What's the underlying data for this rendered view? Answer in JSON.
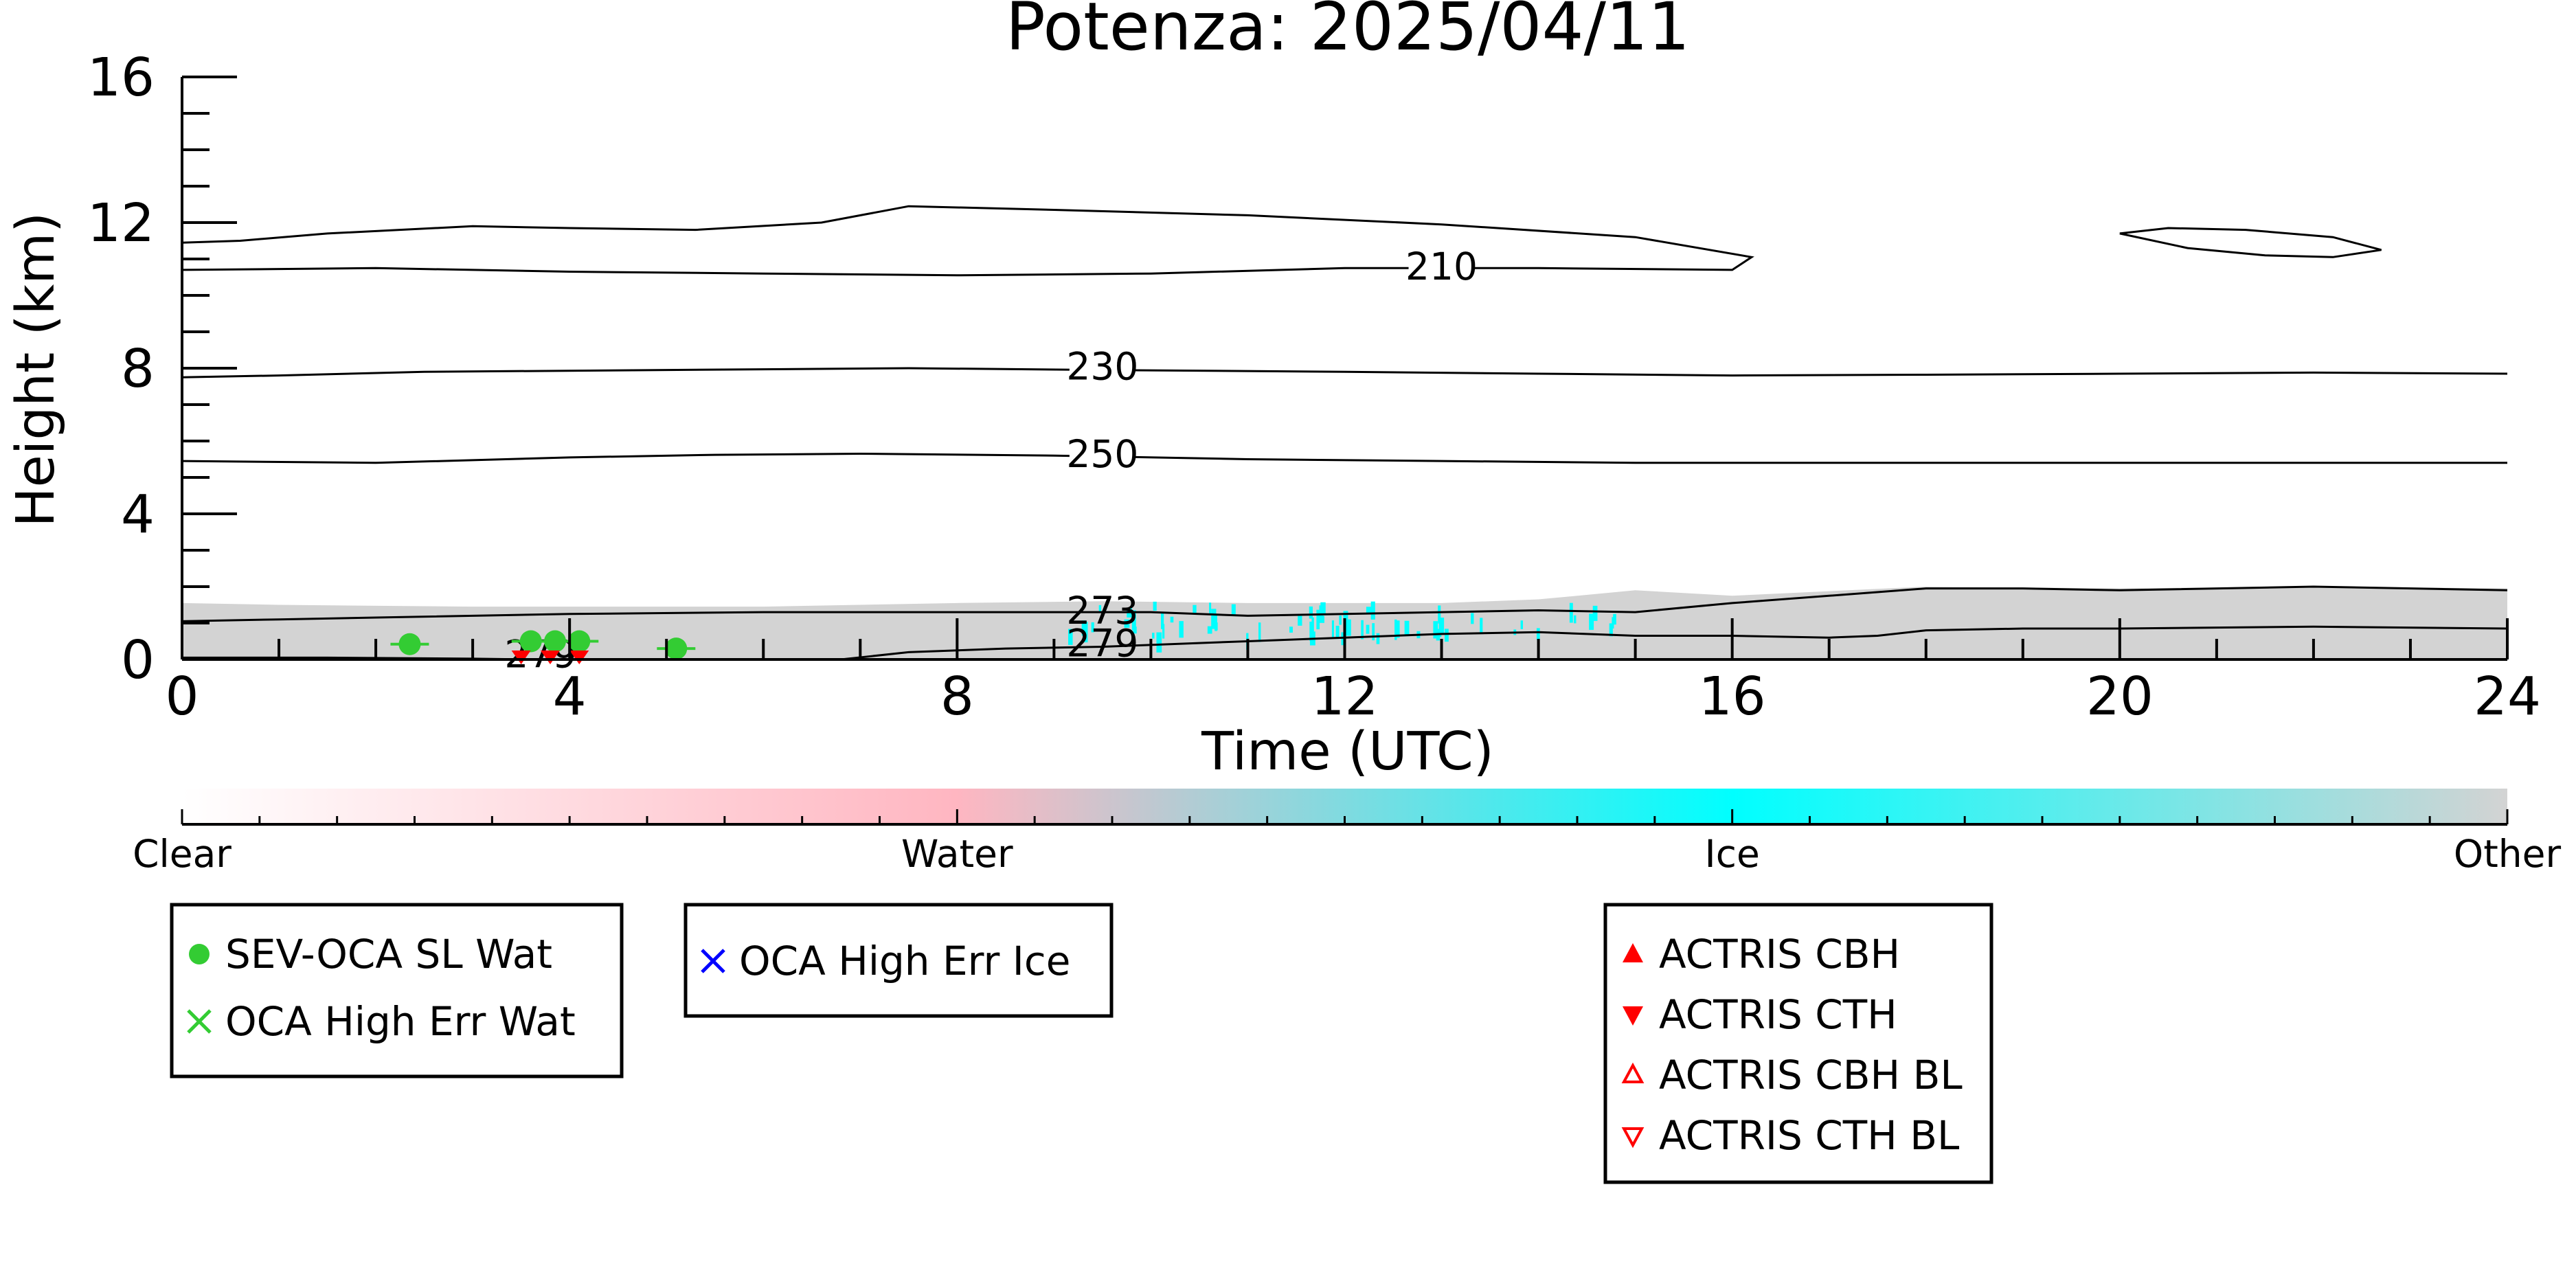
{
  "chart_data": {
    "type": "heatmap",
    "title": "Potenza: 2025/04/11",
    "xlabel": "Time (UTC)",
    "ylabel": "Height (km)",
    "xlim": [
      0,
      24
    ],
    "ylim": [
      0,
      16
    ],
    "xticks": [
      0,
      4,
      8,
      12,
      16,
      20,
      24
    ],
    "yticks": [
      0,
      4,
      8,
      12,
      16
    ],
    "grid": false,
    "categories": [
      "Clear",
      "Water",
      "Ice",
      "Other"
    ],
    "category_colors": {
      "Clear": "#ffffff",
      "Water": "#ffb6c1",
      "Ice": "#00ffff",
      "Other": "#d3d3d3"
    },
    "contours": [
      {
        "label": "210",
        "label_pos": [
          13,
          10.7
        ],
        "segments": [
          [
            [
              0,
              11.45
            ],
            [
              0.6,
              11.5
            ],
            [
              1.5,
              11.7
            ],
            [
              3,
              11.9
            ],
            [
              4,
              11.85
            ],
            [
              5.3,
              11.8
            ],
            [
              6.6,
              12.0
            ],
            [
              7.5,
              12.45
            ],
            [
              9,
              12.35
            ],
            [
              11,
              12.2
            ],
            [
              13,
              11.95
            ],
            [
              15,
              11.6
            ],
            [
              16.2,
              11.05
            ],
            [
              16,
              10.7
            ],
            [
              14,
              10.75
            ],
            [
              13,
              10.75
            ],
            [
              12,
              10.75
            ],
            [
              10,
              10.6
            ],
            [
              8,
              10.55
            ],
            [
              6,
              10.6
            ],
            [
              4,
              10.65
            ],
            [
              2,
              10.75
            ],
            [
              0,
              10.7
            ]
          ],
          [
            [
              20,
              11.7
            ],
            [
              20.5,
              11.85
            ],
            [
              21.3,
              11.8
            ],
            [
              22.2,
              11.6
            ],
            [
              22.7,
              11.25
            ],
            [
              22.2,
              11.05
            ],
            [
              21.5,
              11.1
            ],
            [
              20.7,
              11.3
            ],
            [
              20,
              11.7
            ]
          ]
        ]
      },
      {
        "label": "230",
        "label_pos": [
          9.5,
          7.95
        ],
        "segments": [
          [
            [
              0,
              7.75
            ],
            [
              1,
              7.8
            ],
            [
              2.5,
              7.9
            ],
            [
              5,
              7.95
            ],
            [
              7.5,
              8.0
            ],
            [
              9.5,
              7.95
            ],
            [
              12,
              7.9
            ],
            [
              14,
              7.85
            ],
            [
              16,
              7.8
            ],
            [
              18,
              7.82
            ],
            [
              20,
              7.85
            ],
            [
              22,
              7.88
            ],
            [
              24,
              7.85
            ]
          ]
        ]
      },
      {
        "label": "250",
        "label_pos": [
          9.5,
          5.55
        ],
        "segments": [
          [
            [
              0,
              5.45
            ],
            [
              2,
              5.4
            ],
            [
              4,
              5.55
            ],
            [
              5.5,
              5.62
            ],
            [
              7,
              5.65
            ],
            [
              9,
              5.6
            ],
            [
              11,
              5.5
            ],
            [
              13,
              5.45
            ],
            [
              15,
              5.4
            ],
            [
              18,
              5.4
            ],
            [
              21,
              5.4
            ],
            [
              24,
              5.4
            ]
          ]
        ]
      },
      {
        "label": "273",
        "label_pos": [
          9.5,
          1.25
        ],
        "segments": [
          [
            [
              0,
              1.05
            ],
            [
              1,
              1.1
            ],
            [
              2,
              1.15
            ],
            [
              4,
              1.25
            ],
            [
              6,
              1.3
            ],
            [
              8,
              1.3
            ],
            [
              10,
              1.3
            ],
            [
              11,
              1.2
            ],
            [
              12,
              1.25
            ],
            [
              13,
              1.3
            ],
            [
              14,
              1.35
            ],
            [
              15,
              1.3
            ],
            [
              16,
              1.55
            ],
            [
              17,
              1.75
            ],
            [
              18,
              1.95
            ],
            [
              19,
              1.95
            ],
            [
              20,
              1.9
            ],
            [
              22,
              2.0
            ],
            [
              24,
              1.9
            ]
          ]
        ]
      },
      {
        "label": "279",
        "label_pos": [
          9.5,
          0.35
        ],
        "segments": [
          [
            [
              6.8,
              0.0
            ],
            [
              7.5,
              0.2
            ],
            [
              8.5,
              0.3
            ],
            [
              9.5,
              0.35
            ],
            [
              10.5,
              0.45
            ],
            [
              11,
              0.5
            ],
            [
              12,
              0.6
            ],
            [
              13,
              0.7
            ],
            [
              14,
              0.75
            ],
            [
              15,
              0.65
            ],
            [
              16,
              0.65
            ],
            [
              17,
              0.6
            ],
            [
              17.5,
              0.65
            ],
            [
              18,
              0.8
            ],
            [
              19,
              0.85
            ],
            [
              20,
              0.85
            ],
            [
              22,
              0.9
            ],
            [
              24,
              0.85
            ]
          ]
        ]
      },
      {
        "label": "279",
        "label_pos": [
          3.7,
          0.05
        ],
        "segments": [
          [
            [
              0,
              0.05
            ],
            [
              1.5,
              0.05
            ],
            [
              3,
              0.02
            ],
            [
              3.6,
              0.0
            ]
          ]
        ]
      }
    ],
    "colorbar": {
      "labels": [
        "Clear",
        "Water",
        "Ice",
        "Other"
      ]
    },
    "series": [
      {
        "name": "SEV-OCA SL Wat",
        "color": "#33cc33",
        "marker": "circle",
        "x": [
          2.35,
          3.6,
          3.85,
          4.1,
          5.1
        ],
        "y": [
          0.42,
          0.5,
          0.5,
          0.5,
          0.3
        ]
      },
      {
        "name": "OCA High Err Wat",
        "color": "#33cc33",
        "marker": "x",
        "x": [],
        "y": []
      },
      {
        "name": "OCA High Err Ice",
        "color": "#0000ff",
        "marker": "x",
        "x": [],
        "y": []
      },
      {
        "name": "ACTRIS CBH",
        "color": "#ff0000",
        "marker": "triangle-up",
        "x": [],
        "y": []
      },
      {
        "name": "ACTRIS CTH",
        "color": "#ff0000",
        "marker": "triangle-down",
        "x": [
          3.5,
          3.8,
          4.1
        ],
        "y": [
          0.02,
          0.02,
          0.02
        ]
      },
      {
        "name": "ACTRIS CBH BL",
        "color": "#ff0000",
        "marker": "triangle-up-open",
        "x": [],
        "y": []
      },
      {
        "name": "ACTRIS CTH BL",
        "color": "#ff0000",
        "marker": "triangle-down-open",
        "x": [],
        "y": []
      }
    ],
    "legend_groups": [
      [
        "SEV-OCA SL Wat",
        "OCA High Err Wat"
      ],
      [
        "OCA High Err Ice"
      ],
      [
        "ACTRIS CBH",
        "ACTRIS CTH",
        "ACTRIS CBH BL",
        "ACTRIS CTH BL"
      ]
    ]
  }
}
